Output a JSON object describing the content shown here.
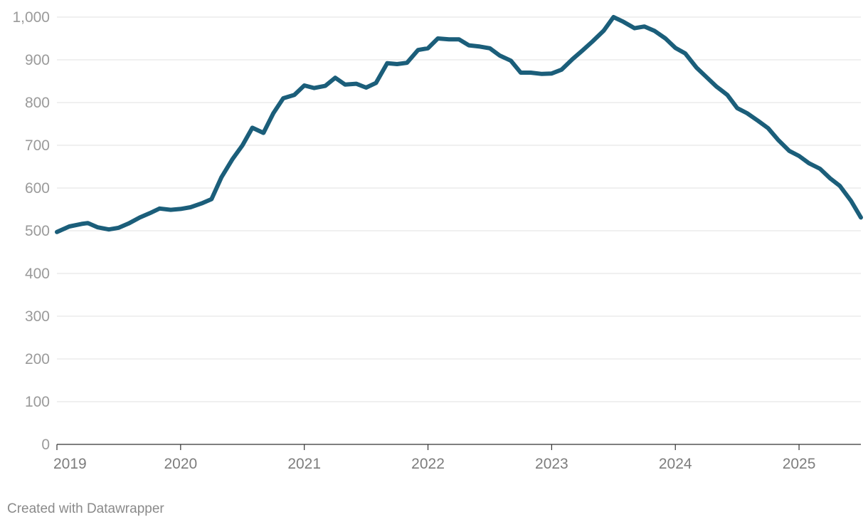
{
  "footer": {
    "credit": "Created with Datawrapper"
  },
  "chart_data": {
    "type": "line",
    "title": "",
    "xlabel": "",
    "ylabel": "",
    "xlim": [
      2019.0,
      2025.5
    ],
    "ylim": [
      0,
      1000
    ],
    "y_ticks": [
      0,
      100,
      200,
      300,
      400,
      500,
      600,
      700,
      800,
      900,
      1000
    ],
    "y_tick_labels": [
      "0",
      "100",
      "200",
      "300",
      "400",
      "500",
      "600",
      "700",
      "800",
      "900",
      "1,000"
    ],
    "x_ticks": [
      2019,
      2020,
      2021,
      2022,
      2023,
      2024,
      2025
    ],
    "x_tick_labels": [
      "2019",
      "2020",
      "2021",
      "2022",
      "2023",
      "2024",
      "2025"
    ],
    "grid": true,
    "legend": "none",
    "line_color": "#1b5e7a",
    "series": [
      {
        "x": [
          2019.0,
          2019.1,
          2019.2,
          2019.25,
          2019.33,
          2019.42,
          2019.5,
          2019.58,
          2019.67,
          2019.75,
          2019.83,
          2019.92,
          2020.0,
          2020.08,
          2020.17,
          2020.25,
          2020.33,
          2020.42,
          2020.5,
          2020.58,
          2020.67,
          2020.75,
          2020.83,
          2020.92,
          2021.0,
          2021.08,
          2021.17,
          2021.25,
          2021.33,
          2021.42,
          2021.5,
          2021.58,
          2021.67,
          2021.75,
          2021.83,
          2021.92,
          2022.0,
          2022.08,
          2022.17,
          2022.25,
          2022.33,
          2022.42,
          2022.5,
          2022.58,
          2022.67,
          2022.75,
          2022.83,
          2022.92,
          2023.0,
          2023.08,
          2023.17,
          2023.25,
          2023.33,
          2023.42,
          2023.5,
          2023.58,
          2023.67,
          2023.75,
          2023.83,
          2023.92,
          2024.0,
          2024.08,
          2024.17,
          2024.25,
          2024.33,
          2024.42,
          2024.5,
          2024.58,
          2024.67,
          2024.75,
          2024.83,
          2024.92,
          2025.0,
          2025.08,
          2025.17,
          2025.25,
          2025.33,
          2025.42,
          2025.5
        ],
        "y": [
          497,
          510,
          516,
          518,
          508,
          503,
          507,
          517,
          531,
          541,
          552,
          549,
          551,
          555,
          564,
          574,
          625,
          668,
          700,
          741,
          729,
          775,
          810,
          818,
          840,
          834,
          839,
          858,
          842,
          844,
          835,
          846,
          892,
          890,
          893,
          923,
          927,
          950,
          948,
          948,
          934,
          931,
          927,
          910,
          898,
          870,
          870,
          867,
          868,
          877,
          902,
          922,
          943,
          968,
          1000,
          989,
          974,
          978,
          968,
          950,
          928,
          915,
          882,
          860,
          838,
          818,
          787,
          775,
          757,
          740,
          713,
          687,
          675,
          658,
          645,
          623,
          605,
          570,
          531
        ]
      }
    ]
  }
}
